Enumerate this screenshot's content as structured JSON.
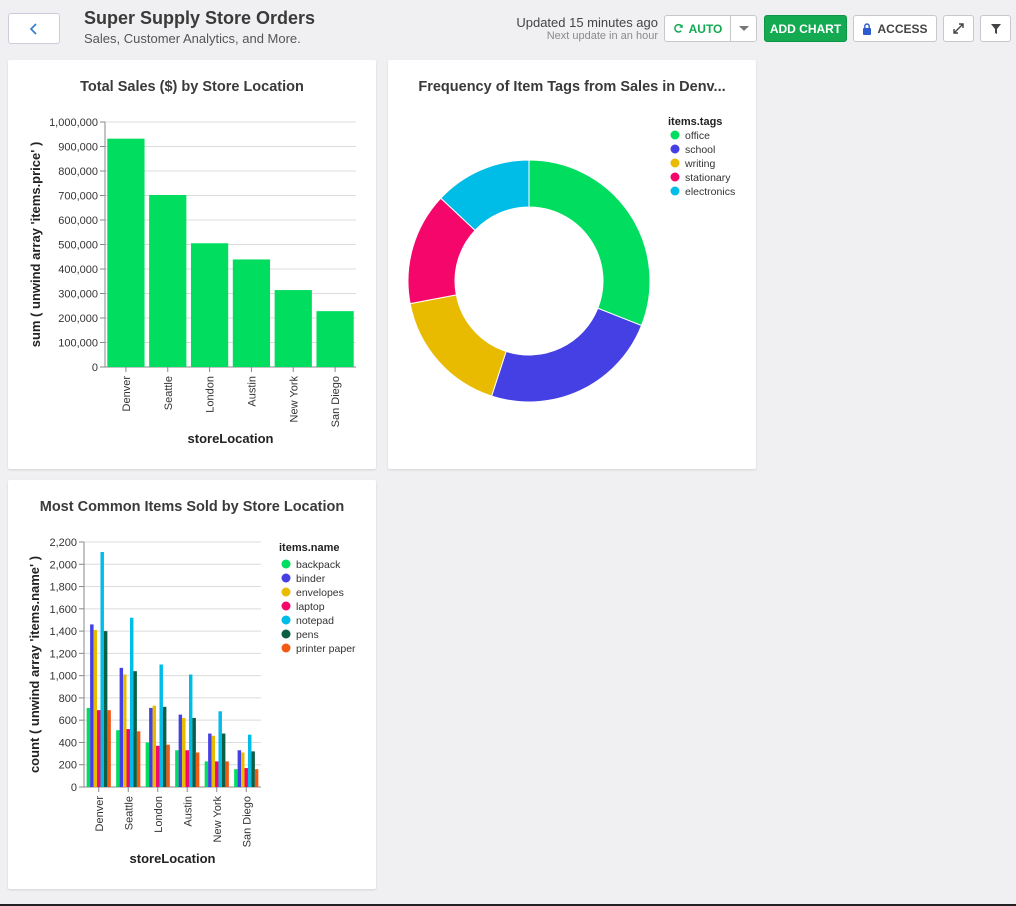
{
  "header": {
    "title": "Super Supply Store Orders",
    "subtitle": "Sales, Customer Analytics, and More.",
    "updated": "Updated 15 minutes ago",
    "next_update": "Next update in an hour",
    "auto_label": "AUTO",
    "add_chart_label": "ADD CHART",
    "access_label": "ACCESS",
    "icons": {
      "back": "chevron-left-icon",
      "refresh": "refresh-icon",
      "caret": "caret-down-icon",
      "lock": "lock-icon",
      "expand": "expand-icon",
      "filter": "filter-icon"
    }
  },
  "colors": {
    "accent": "#13aa52",
    "bar": "#00dd5f"
  },
  "cards": [
    {
      "title": "Total Sales ($) by Store Location"
    },
    {
      "title": "Frequency of Item Tags from Sales in Denv..."
    },
    {
      "title": "Most Common Items Sold by Store Location"
    }
  ],
  "chart_data": [
    {
      "type": "bar",
      "title": "Total Sales ($) by Store Location",
      "xlabel": "storeLocation",
      "ylabel": "sum ( unwind array 'items.price' )",
      "categories": [
        "Denver",
        "Seattle",
        "London",
        "Austin",
        "New York",
        "San Diego"
      ],
      "values": [
        932000,
        702000,
        505000,
        439000,
        314000,
        228000
      ],
      "ylim": [
        0,
        1000000
      ],
      "yticks": [
        "0",
        "100,000",
        "200,000",
        "300,000",
        "400,000",
        "500,000",
        "600,000",
        "700,000",
        "800,000",
        "900,000",
        "1,000,000"
      ],
      "color": "#00dd5f",
      "grid": true
    },
    {
      "type": "pie",
      "title": "Frequency of Item Tags from Sales in Denv...",
      "legend_title": "items.tags",
      "legend_position": "top-right",
      "labels": [
        "office",
        "school",
        "writing",
        "stationary",
        "electronics"
      ],
      "values": [
        31,
        24,
        17,
        15,
        13
      ],
      "colors": [
        "#00dd5f",
        "#4440e4",
        "#e8bb00",
        "#f5066b",
        "#00bde8"
      ]
    },
    {
      "type": "bar",
      "title": "Most Common Items Sold by Store Location",
      "xlabel": "storeLocation",
      "ylabel": "count ( unwind array 'items.name' )",
      "legend_title": "items.name",
      "legend_position": "right",
      "categories": [
        "Denver",
        "Seattle",
        "London",
        "Austin",
        "New York",
        "San Diego"
      ],
      "ylim": [
        0,
        2200
      ],
      "yticks": [
        "0",
        "200",
        "400",
        "600",
        "800",
        "1,000",
        "1,200",
        "1,400",
        "1,600",
        "1,800",
        "2,000",
        "2,200"
      ],
      "grid": true,
      "series": [
        {
          "name": "backpack",
          "color": "#00dd5f",
          "values": [
            710,
            510,
            400,
            330,
            230,
            160
          ]
        },
        {
          "name": "binder",
          "color": "#4440e4",
          "values": [
            1460,
            1070,
            710,
            650,
            480,
            330
          ]
        },
        {
          "name": "envelopes",
          "color": "#e8bb00",
          "values": [
            1410,
            1010,
            730,
            620,
            460,
            310
          ]
        },
        {
          "name": "laptop",
          "color": "#f5066b",
          "values": [
            690,
            520,
            370,
            330,
            230,
            170
          ]
        },
        {
          "name": "notepad",
          "color": "#00bde8",
          "values": [
            2110,
            1520,
            1100,
            1010,
            680,
            470
          ]
        },
        {
          "name": "pens",
          "color": "#0b5e43",
          "values": [
            1400,
            1040,
            720,
            620,
            480,
            320
          ]
        },
        {
          "name": "printer paper",
          "color": "#f05a14",
          "values": [
            690,
            500,
            380,
            310,
            230,
            160
          ]
        }
      ]
    }
  ]
}
